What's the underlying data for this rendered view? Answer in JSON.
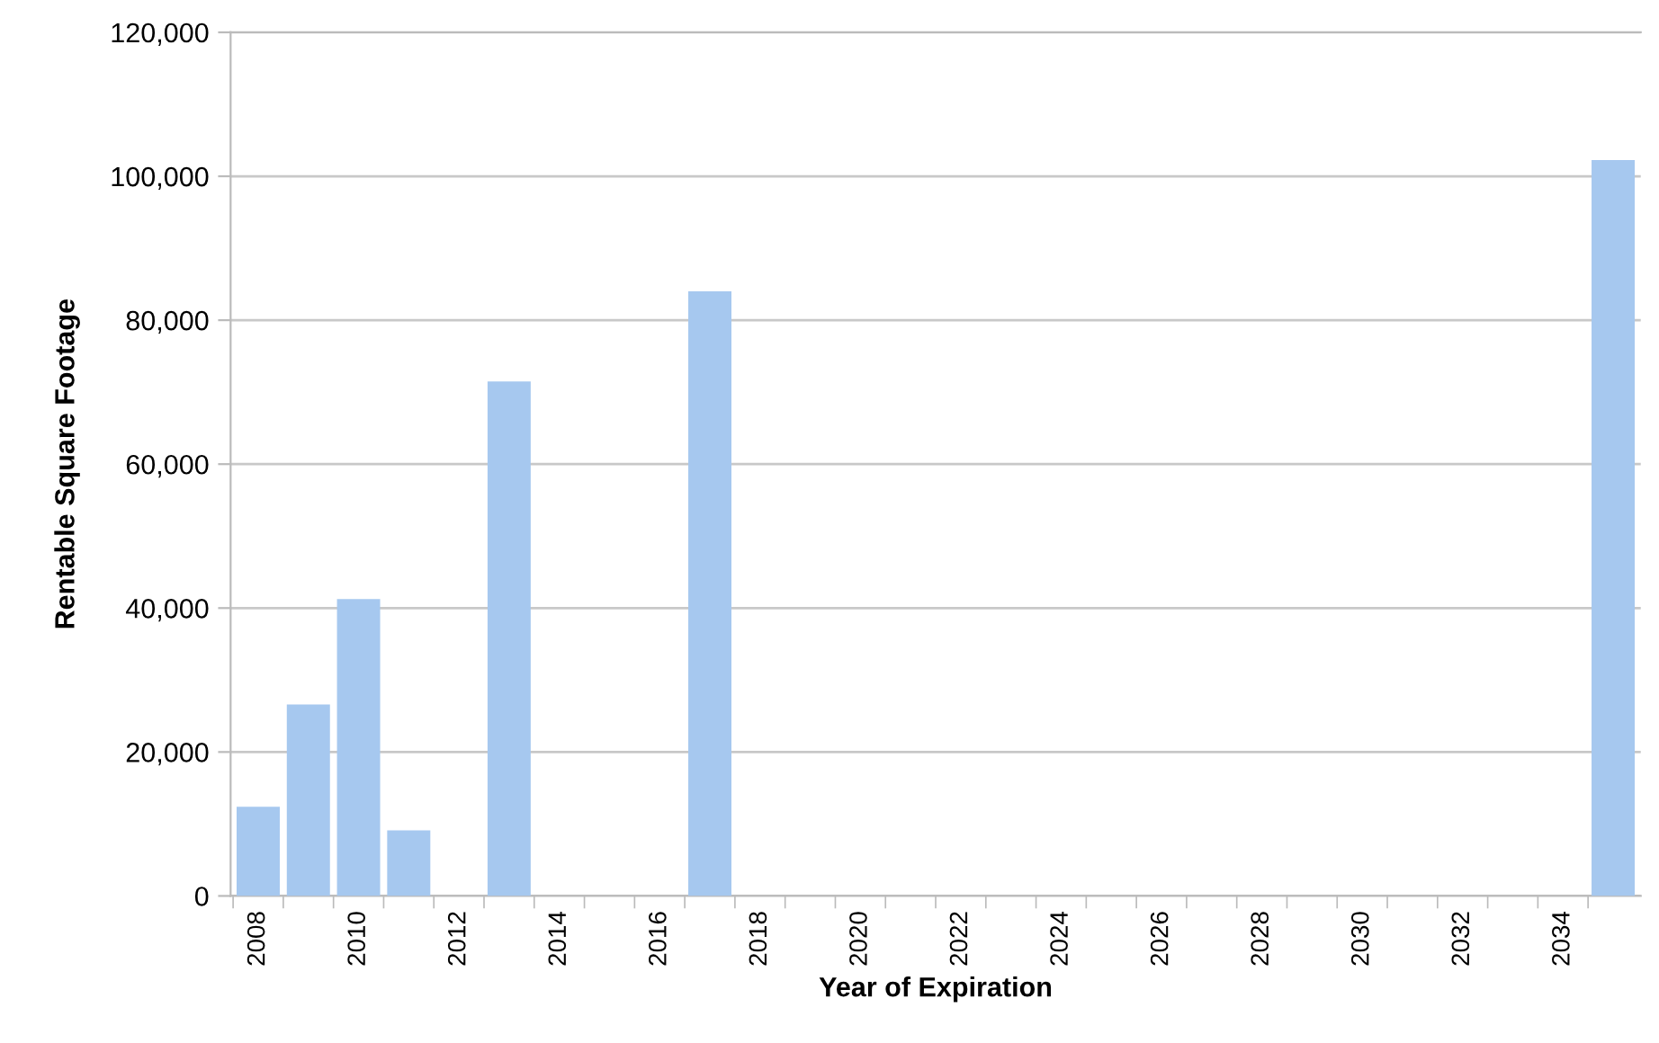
{
  "chart_data": {
    "type": "bar",
    "xlabel": "Year of Expiration",
    "ylabel": "Rentable Square Footage",
    "categories": [
      "2008",
      null,
      "2010",
      null,
      "2012",
      null,
      "2014",
      null,
      "2016",
      null,
      "2018",
      null,
      "2020",
      null,
      "2022",
      null,
      "2024",
      null,
      "2026",
      null,
      "2028",
      null,
      "2030",
      null,
      "2032",
      null,
      "2034",
      null
    ],
    "values": [
      12400,
      26600,
      41250,
      9100,
      0,
      71500,
      0,
      0,
      0,
      84000,
      0,
      0,
      0,
      0,
      0,
      0,
      0,
      0,
      0,
      0,
      0,
      0,
      0,
      0,
      0,
      0,
      0,
      102250
    ],
    "color": "#a6c8ef",
    "ylim": [
      0,
      120000
    ],
    "yticks": [
      {
        "value": 0,
        "label": "0"
      },
      {
        "value": 20000,
        "label": "20,000"
      },
      {
        "value": 40000,
        "label": "40,000"
      },
      {
        "value": 60000,
        "label": "60,000"
      },
      {
        "value": 80000,
        "label": "80,000"
      },
      {
        "value": 100000,
        "label": "100,000"
      },
      {
        "value": 120000,
        "label": "120,000"
      }
    ],
    "grid": "y"
  }
}
